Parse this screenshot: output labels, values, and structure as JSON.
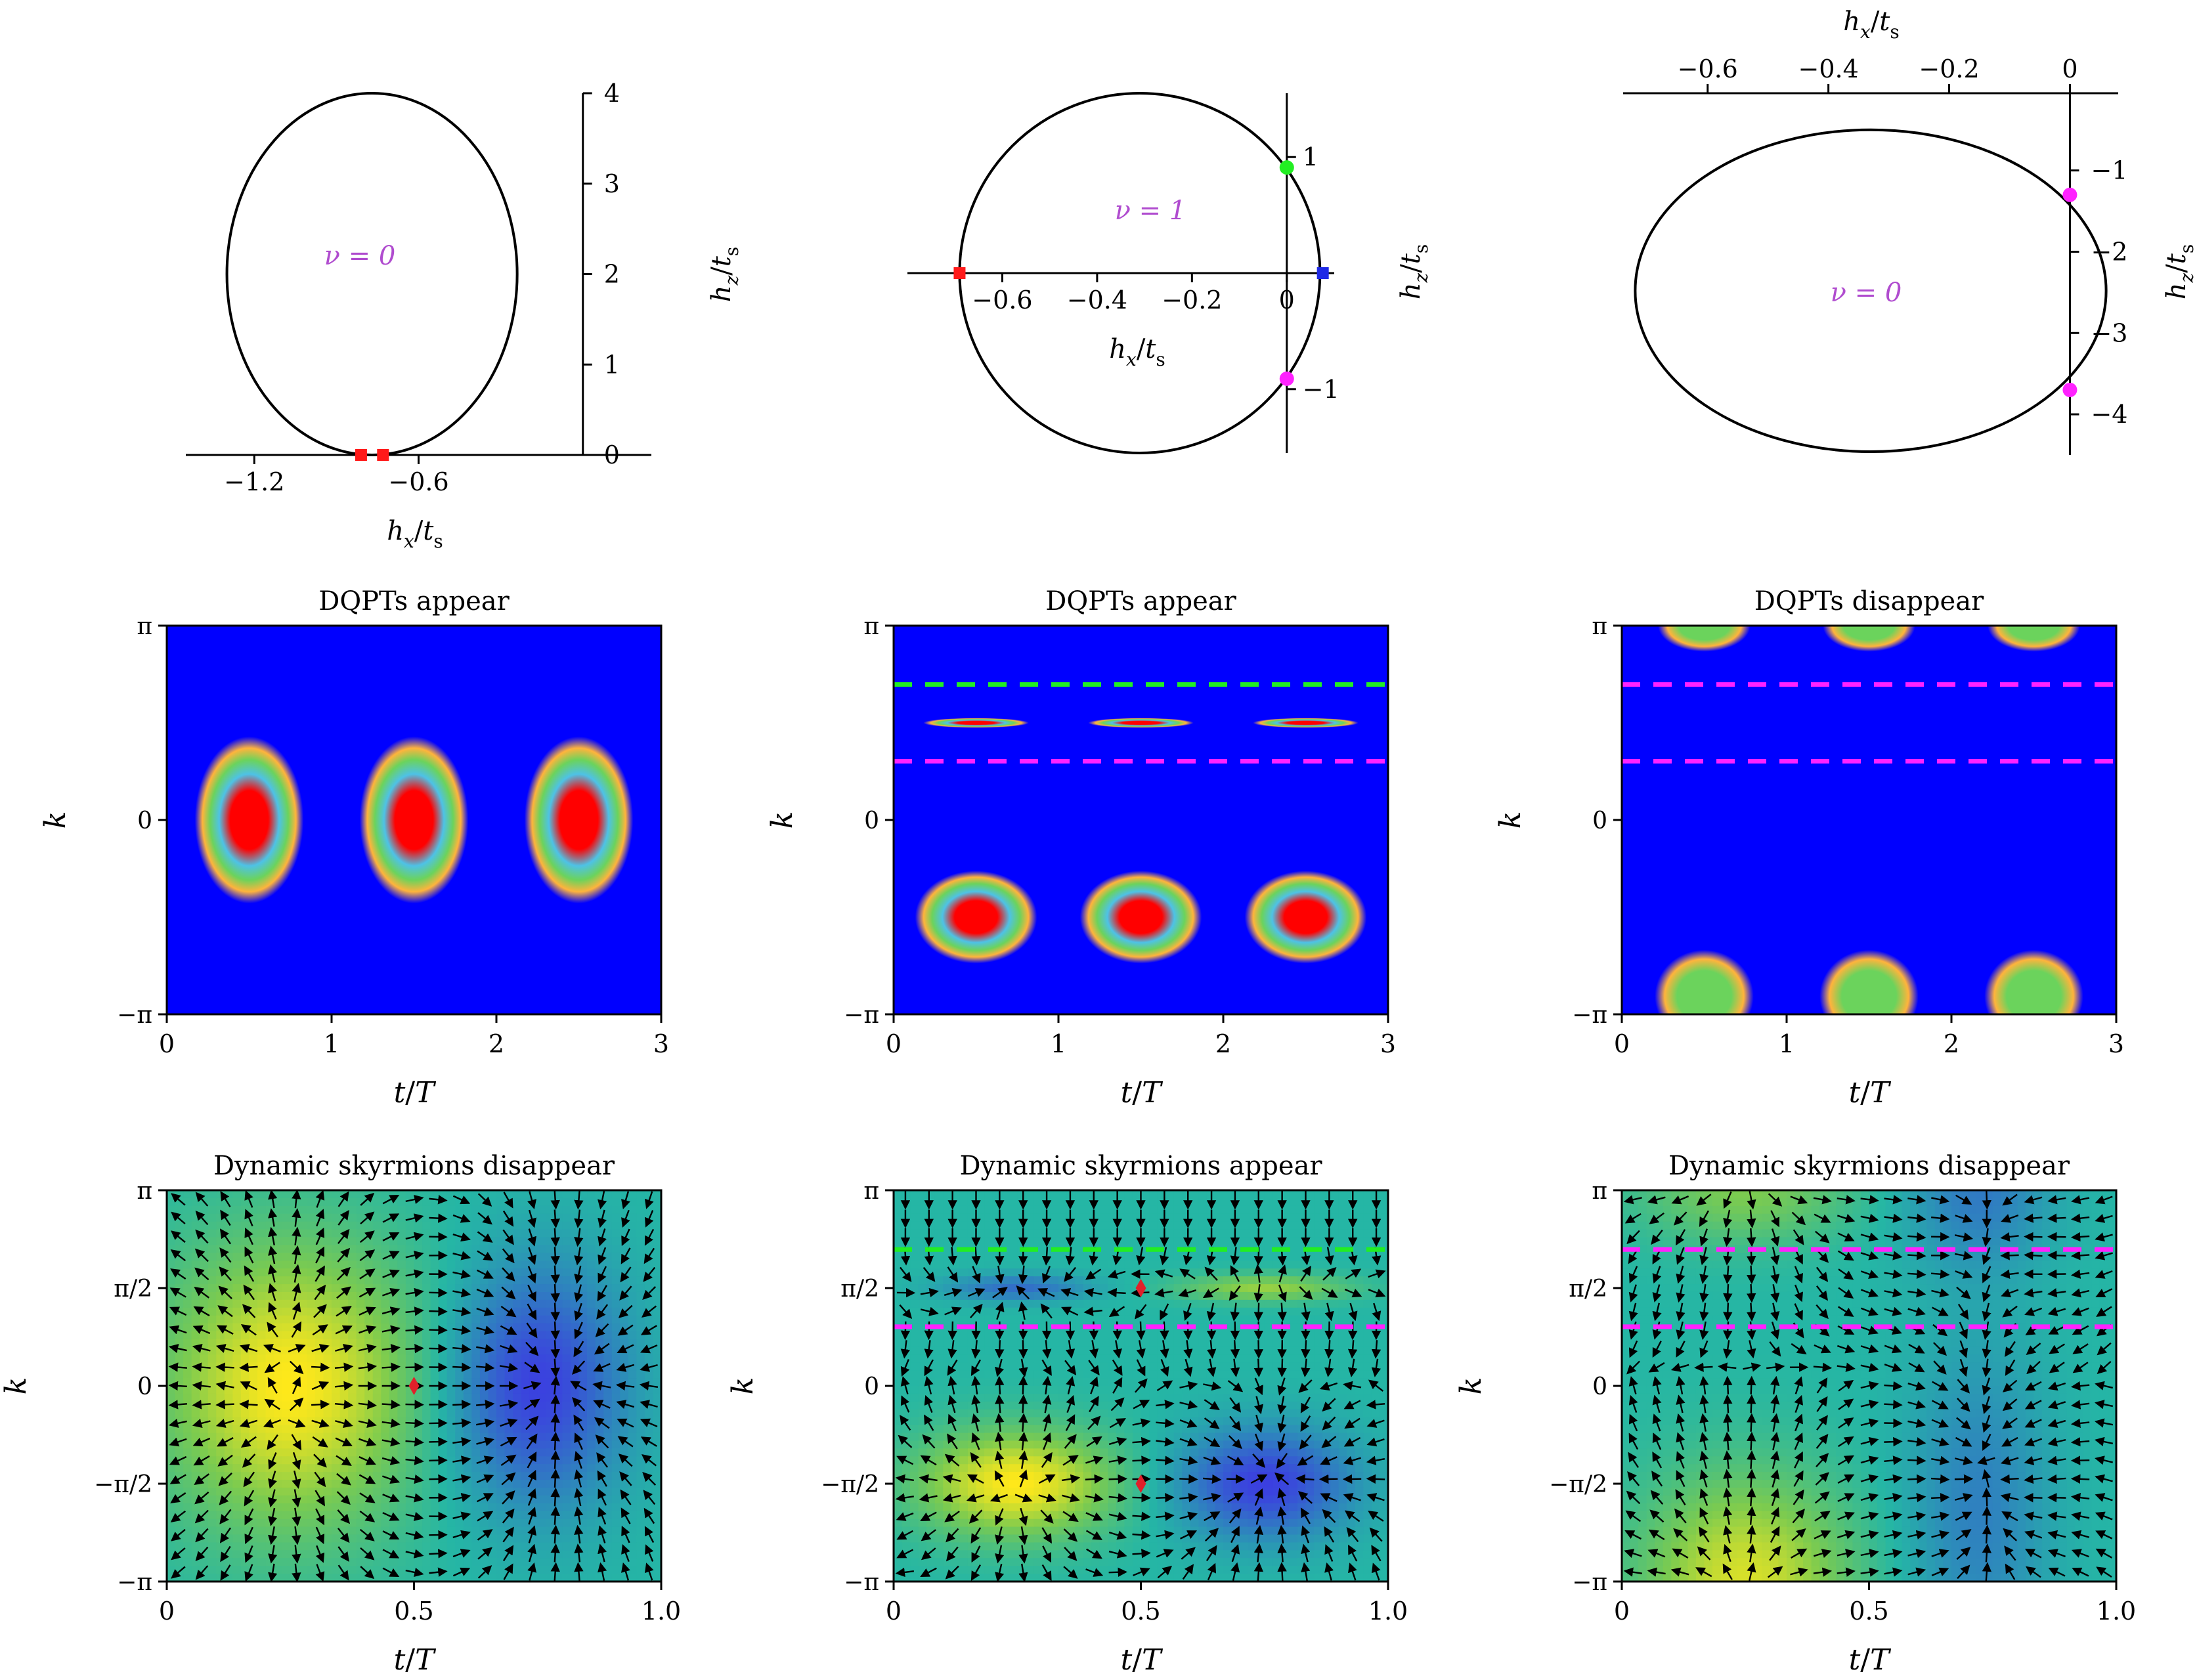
{
  "colors": {
    "axis": "#000000",
    "curve": "#000000",
    "nu_label": "#b04ccf",
    "red_marker": "#ff1a1a",
    "green_marker": "#22ee22",
    "blue_marker": "#1f2ae6",
    "magenta_marker": "#ff22ff",
    "green_dash": "#22ee22",
    "magenta_dash": "#ff22ff",
    "dqpt_background": "#0000ff",
    "dqpt_ring_orange": "#ffb43c",
    "dqpt_ring_cyan": "#4ec2e6",
    "dqpt_ring_green": "#6bd35c",
    "dqpt_center_red": "#ff0000",
    "sky_background": "#25b6a5",
    "sky_yellow": "#ffe81a",
    "sky_blue": "#3b3fe0",
    "sky_green": "#7ccb4f",
    "arrow": "#000000",
    "critical_point": "#e0202a"
  },
  "chart_data": [
    {
      "id": "a1",
      "type": "line",
      "title": "",
      "xlabel": "h_x/t_s",
      "ylabel": "h_z/t_s",
      "xlim": [
        -1.45,
        0.25
      ],
      "ylim": [
        0,
        4
      ],
      "xticks": [
        -1.2,
        -0.6
      ],
      "xtick_labels": [
        "−1.2",
        "−0.6"
      ],
      "yticks": [
        0,
        1,
        2,
        3,
        4
      ],
      "ytick_labels": [
        "0",
        "1",
        "2",
        "3",
        "4"
      ],
      "y_axis_position": "right side at h_x = 0",
      "curve": {
        "name": "ellipse",
        "center": [
          -0.77,
          2.0
        ],
        "semi_axes": [
          0.53,
          2.0
        ]
      },
      "annotation": "ν = 0",
      "markers": [
        {
          "x": -0.81,
          "y": 0,
          "color": "red"
        },
        {
          "x": -0.73,
          "y": 0,
          "color": "red"
        }
      ]
    },
    {
      "id": "a2",
      "type": "line",
      "title": "",
      "xlabel": "h_x/t_s",
      "ylabel": "h_z/t_s",
      "xlim": [
        -0.8,
        0.1
      ],
      "ylim": [
        -1.55,
        1.55
      ],
      "xticks": [
        -0.6,
        -0.4,
        -0.2,
        0
      ],
      "xtick_labels": [
        "−0.6",
        "−0.4",
        "−0.2",
        "0"
      ],
      "yticks": [
        -1,
        1
      ],
      "ytick_labels": [
        "−1",
        "1"
      ],
      "curve": {
        "name": "ellipse",
        "center": [
          -0.31,
          0
        ],
        "semi_axes": [
          0.38,
          1.55
        ]
      },
      "annotation": "ν = 1",
      "markers": [
        {
          "x": -0.69,
          "y": 0,
          "color": "red"
        },
        {
          "x": 0.076,
          "y": 0,
          "color": "blue"
        },
        {
          "x": 0,
          "y": 0.91,
          "color": "green"
        },
        {
          "x": 0,
          "y": -0.91,
          "color": "magenta"
        }
      ]
    },
    {
      "id": "a3",
      "type": "line",
      "title": "",
      "xlabel": "h_x/t_s",
      "ylabel": "h_z/t_s",
      "xlim": [
        -0.74,
        0.08
      ],
      "ylim": [
        -4.5,
        -0.05
      ],
      "xticks": [
        -0.6,
        -0.4,
        -0.2,
        0
      ],
      "xtick_labels": [
        "−0.6",
        "−0.4",
        "−0.2",
        "0"
      ],
      "yticks": [
        -1,
        -2,
        -3,
        -4
      ],
      "ytick_labels": [
        "−1",
        "−2",
        "−3",
        "−4"
      ],
      "x_axis_position": "top",
      "y_axis_position": "at h_x = 0",
      "curve": {
        "name": "ellipse",
        "center": [
          -0.33,
          -2.48
        ],
        "semi_axes": [
          0.39,
          1.98
        ]
      },
      "annotation": "ν = 0",
      "markers": [
        {
          "x": 0,
          "y": -1.3,
          "color": "magenta"
        },
        {
          "x": 0,
          "y": -3.7,
          "color": "magenta"
        }
      ]
    },
    {
      "id": "b1",
      "type": "heatmap",
      "title": "DQPTs appear",
      "xlabel": "t/T",
      "ylabel": "k",
      "xlim": [
        0,
        3
      ],
      "ylim": [
        -3.14159,
        3.14159
      ],
      "xticks": [
        0,
        1,
        2,
        3
      ],
      "xtick_labels": [
        "0",
        "1",
        "2",
        "3"
      ],
      "yticks": [
        -3.14159,
        0,
        3.14159
      ],
      "ytick_labels": [
        "−π",
        "0",
        "π"
      ],
      "blobs": [
        {
          "t": 0.5,
          "k": 0.0,
          "width_t": 0.33,
          "height_k": 1.35,
          "profile": "full"
        },
        {
          "t": 1.5,
          "k": 0.0,
          "width_t": 0.33,
          "height_k": 1.35,
          "profile": "full"
        },
        {
          "t": 2.5,
          "k": 0.0,
          "width_t": 0.33,
          "height_k": 1.35,
          "profile": "full"
        }
      ],
      "dashed_lines": []
    },
    {
      "id": "b2",
      "type": "heatmap",
      "title": "DQPTs appear",
      "xlabel": "t/T",
      "ylabel": "k",
      "xlim": [
        0,
        3
      ],
      "ylim": [
        -3.14159,
        3.14159
      ],
      "xticks": [
        0,
        1,
        2,
        3
      ],
      "xtick_labels": [
        "0",
        "1",
        "2",
        "3"
      ],
      "yticks": [
        -3.14159,
        0,
        3.14159
      ],
      "ytick_labels": [
        "−π",
        "0",
        "π"
      ],
      "blobs": [
        {
          "t": 0.5,
          "k": 1.57,
          "width_t": 0.32,
          "height_k": 0.08,
          "profile": "full"
        },
        {
          "t": 1.5,
          "k": 1.57,
          "width_t": 0.32,
          "height_k": 0.08,
          "profile": "full"
        },
        {
          "t": 2.5,
          "k": 1.57,
          "width_t": 0.32,
          "height_k": 0.08,
          "profile": "full"
        },
        {
          "t": 0.5,
          "k": -1.57,
          "width_t": 0.37,
          "height_k": 0.75,
          "profile": "full"
        },
        {
          "t": 1.5,
          "k": -1.57,
          "width_t": 0.37,
          "height_k": 0.75,
          "profile": "full"
        },
        {
          "t": 2.5,
          "k": -1.57,
          "width_t": 0.37,
          "height_k": 0.75,
          "profile": "full"
        }
      ],
      "dashed_lines": [
        {
          "k": 2.19,
          "color": "green"
        },
        {
          "k": 0.95,
          "color": "magenta"
        }
      ]
    },
    {
      "id": "b3",
      "type": "heatmap",
      "title": "DQPTs disappear",
      "xlabel": "t/T",
      "ylabel": "k",
      "xlim": [
        0,
        3
      ],
      "ylim": [
        -3.14159,
        3.14159
      ],
      "xticks": [
        0,
        1,
        2,
        3
      ],
      "xtick_labels": [
        "0",
        "1",
        "2",
        "3"
      ],
      "yticks": [
        -3.14159,
        0,
        3.14159
      ],
      "ytick_labels": [
        "−π",
        "0",
        "π"
      ],
      "blobs": [
        {
          "t": 0.5,
          "k": 3.14159,
          "width_t": 0.28,
          "height_k": 0.42,
          "profile": "partial"
        },
        {
          "t": 1.5,
          "k": 3.14159,
          "width_t": 0.28,
          "height_k": 0.42,
          "profile": "partial"
        },
        {
          "t": 2.5,
          "k": 3.14159,
          "width_t": 0.28,
          "height_k": 0.42,
          "profile": "partial"
        },
        {
          "t": 0.5,
          "k": -2.85,
          "width_t": 0.3,
          "height_k": 0.75,
          "profile": "partial"
        },
        {
          "t": 1.5,
          "k": -2.85,
          "width_t": 0.3,
          "height_k": 0.75,
          "profile": "partial"
        },
        {
          "t": 2.5,
          "k": -2.85,
          "width_t": 0.3,
          "height_k": 0.75,
          "profile": "partial"
        }
      ],
      "dashed_lines": [
        {
          "k": 2.19,
          "color": "magenta"
        },
        {
          "k": 0.95,
          "color": "magenta"
        }
      ]
    },
    {
      "id": "c1",
      "type": "heatmap",
      "title": "Dynamic skyrmions disappear",
      "xlabel": "t/T",
      "ylabel": "k",
      "xlim": [
        0,
        1
      ],
      "ylim": [
        -3.14159,
        3.14159
      ],
      "xticks": [
        0,
        0.5,
        1.0
      ],
      "xtick_labels": [
        "0",
        "0.5",
        "1.0"
      ],
      "yticks": [
        -3.14159,
        -1.5708,
        0,
        1.5708,
        3.14159
      ],
      "ytick_labels": [
        "−π",
        "−π/2",
        "0",
        "π/2",
        "π"
      ],
      "field_centers": [
        {
          "t": 0.25,
          "k": 0.0,
          "sign": 1,
          "amp": 1.0,
          "sigma_t": 0.18,
          "sigma_k": 1.6
        },
        {
          "t": 0.75,
          "k": 0.0,
          "sign": -1,
          "amp": 1.0,
          "sigma_t": 0.12,
          "sigma_k": 1.3
        }
      ],
      "critical_points": [
        {
          "t": 0.5,
          "k": 0.0
        }
      ],
      "dashed_lines": []
    },
    {
      "id": "c2",
      "type": "heatmap",
      "title": "Dynamic skyrmions appear",
      "xlabel": "t/T",
      "ylabel": "k",
      "xlim": [
        0,
        1
      ],
      "ylim": [
        -3.14159,
        3.14159
      ],
      "xticks": [
        0,
        0.5,
        1.0
      ],
      "xtick_labels": [
        "0",
        "0.5",
        "1.0"
      ],
      "yticks": [
        -3.14159,
        -1.5708,
        0,
        1.5708,
        3.14159
      ],
      "ytick_labels": [
        "−π",
        "−π/2",
        "0",
        "π/2",
        "π"
      ],
      "field_centers": [
        {
          "t": 0.25,
          "k": -1.5708,
          "sign": 1,
          "amp": 1.0,
          "sigma_t": 0.14,
          "sigma_k": 0.6
        },
        {
          "t": 0.75,
          "k": -1.5708,
          "sign": -1,
          "amp": 1.0,
          "sigma_t": 0.12,
          "sigma_k": 0.6
        },
        {
          "t": 0.25,
          "k": 1.5708,
          "sign": -1,
          "amp": 0.6,
          "sigma_t": 0.1,
          "sigma_k": 0.15
        },
        {
          "t": 0.75,
          "k": 1.5708,
          "sign": 1,
          "amp": 0.6,
          "sigma_t": 0.12,
          "sigma_k": 0.15
        }
      ],
      "critical_points": [
        {
          "t": 0.5,
          "k": 1.5708
        },
        {
          "t": 0.5,
          "k": -1.5708
        }
      ],
      "dashed_lines": [
        {
          "k": 2.19,
          "color": "green"
        },
        {
          "k": 0.95,
          "color": "magenta"
        }
      ]
    },
    {
      "id": "c3",
      "type": "heatmap",
      "title": "Dynamic skyrmions disappear",
      "xlabel": "t/T",
      "ylabel": "k",
      "xlim": [
        0,
        1
      ],
      "ylim": [
        -3.14159,
        3.14159
      ],
      "xticks": [
        0,
        0.5,
        1.0
      ],
      "xtick_labels": [
        "0",
        "0.5",
        "1.0"
      ],
      "yticks": [
        -3.14159,
        -1.5708,
        0,
        1.5708,
        3.14159
      ],
      "ytick_labels": [
        "−π",
        "−π/2",
        "0",
        "π/2",
        "π"
      ],
      "field_centers": [
        {
          "t": 0.25,
          "k": -3.14159,
          "sign": 1,
          "amp": 0.85,
          "sigma_t": 0.15,
          "sigma_k": 1.2
        },
        {
          "t": 0.25,
          "k": 3.14159,
          "sign": 1,
          "amp": 0.5,
          "sigma_t": 0.15,
          "sigma_k": 0.6
        },
        {
          "t": 0.72,
          "k": -2.0,
          "sign": -1,
          "amp": 0.45,
          "sigma_t": 0.1,
          "sigma_k": 1.8
        },
        {
          "t": 0.72,
          "k": 3.14159,
          "sign": -1,
          "amp": 0.5,
          "sigma_t": 0.1,
          "sigma_k": 0.9
        }
      ],
      "critical_points": [],
      "dashed_lines": [
        {
          "k": 2.19,
          "color": "magenta"
        },
        {
          "k": 0.95,
          "color": "magenta"
        }
      ]
    }
  ]
}
